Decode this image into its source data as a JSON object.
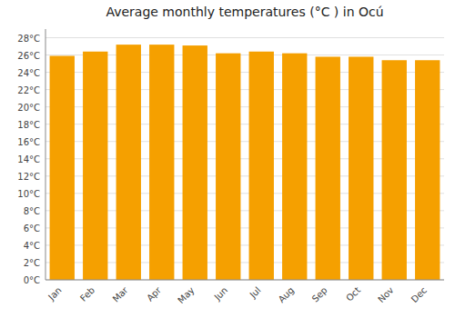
{
  "chart_data": {
    "type": "bar",
    "title": "Average monthly temperatures (°C ) in Ocú",
    "categories": [
      "Jan",
      "Feb",
      "Mar",
      "Apr",
      "May",
      "Jun",
      "Jul",
      "Aug",
      "Sep",
      "Oct",
      "Nov",
      "Dec"
    ],
    "values": [
      25.9,
      26.4,
      27.2,
      27.2,
      27.1,
      26.2,
      26.4,
      26.2,
      25.8,
      25.8,
      25.4,
      25.4
    ],
    "color": "#F5A000",
    "ylim": [
      0,
      29
    ],
    "yticks": [
      {
        "value": 0,
        "label": "0°C"
      },
      {
        "value": 2,
        "label": "2°C"
      },
      {
        "value": 4,
        "label": "4°C"
      },
      {
        "value": 6,
        "label": "6°C"
      },
      {
        "value": 8,
        "label": "8°C"
      },
      {
        "value": 10,
        "label": "10°C"
      },
      {
        "value": 12,
        "label": "12°C"
      },
      {
        "value": 14,
        "label": "14°C"
      },
      {
        "value": 16,
        "label": "16°C"
      },
      {
        "value": 18,
        "label": "18°C"
      },
      {
        "value": 20,
        "label": "20°C"
      },
      {
        "value": 22,
        "label": "22°C"
      },
      {
        "value": 24,
        "label": "24°C"
      },
      {
        "value": 26,
        "label": "26°C"
      },
      {
        "value": 28,
        "label": "28°C"
      }
    ],
    "grid": true
  }
}
